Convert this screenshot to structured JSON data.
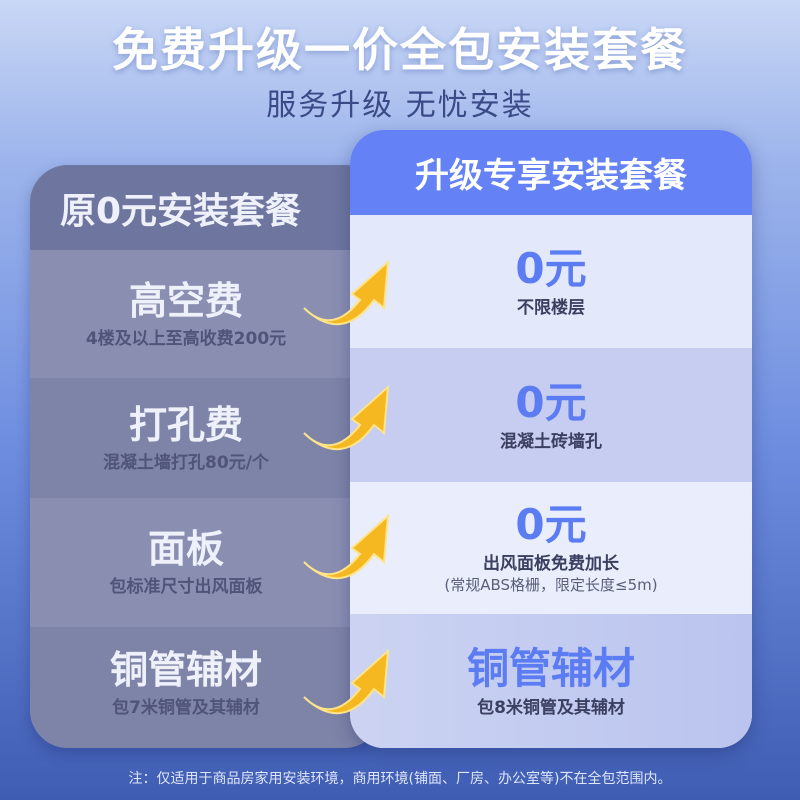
{
  "title": "免费升级一价全包安装套餐",
  "subtitle": "服务升级 无忧安装",
  "left": {
    "header": "原0元安装套餐",
    "rows": [
      {
        "name": "高空费",
        "desc": "4楼及以上至高收费200元"
      },
      {
        "name": "打孔费",
        "desc": "混凝土墙打孔80元/个"
      },
      {
        "name": "面板",
        "desc": "包标准尺寸出风面板"
      },
      {
        "name": "铜管辅材",
        "desc": "包7米铜管及其辅材"
      }
    ]
  },
  "right": {
    "header": "升级专享安装套餐",
    "rows": [
      {
        "value": "0元",
        "desc": "不限楼层",
        "note": ""
      },
      {
        "value": "0元",
        "desc": "混凝土砖墙孔",
        "note": ""
      },
      {
        "value": "0元",
        "desc": "出风面板免费加长",
        "note": "(常规ABS格栅，限定长度≤5m)"
      },
      {
        "value": "铜管辅材",
        "desc": "包8米铜管及其辅材",
        "note": ""
      }
    ]
  },
  "footnote": "注：仅适用于商品房家用安装环境，商用环境(铺面、厂房、办公室等)不在全包范围内。",
  "colors": {
    "accent": "#5b7cf2",
    "header_blue": "#6482f5",
    "arrow": "#f5b820"
  },
  "icons": [
    "curved-arrow-icon"
  ]
}
